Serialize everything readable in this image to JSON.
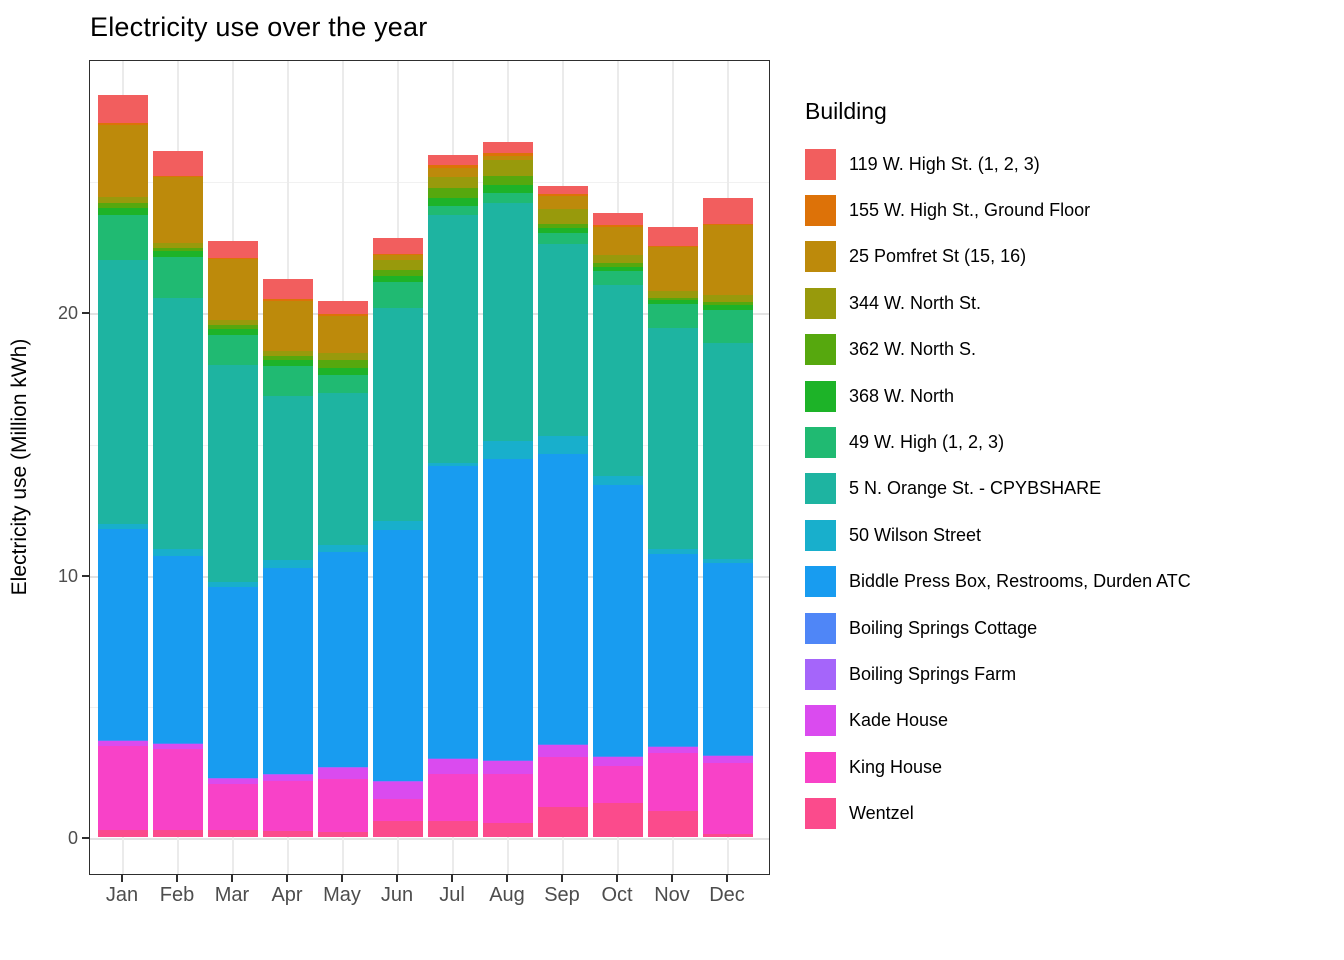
{
  "title": "Electricity use over the year",
  "y_axis": {
    "label": "Electricity use (Million kWh)",
    "tick_labels": [
      "0",
      "10",
      "20"
    ],
    "tick_values": [
      0,
      10,
      20
    ],
    "minor_values": [
      5,
      15,
      25
    ]
  },
  "x_axis": {
    "labels": [
      "Jan",
      "Feb",
      "Mar",
      "Apr",
      "May",
      "Jun",
      "Jul",
      "Aug",
      "Sep",
      "Oct",
      "Nov",
      "Dec"
    ]
  },
  "legend": {
    "title": "Building"
  },
  "chart_data": {
    "type": "bar",
    "stacked": true,
    "title": "Electricity use over the year",
    "xlabel": "",
    "ylabel": "Electricity use (Million kWh)",
    "ylim": [
      0,
      29.6
    ],
    "grid": true,
    "legend_position": "right",
    "categories": [
      "Jan",
      "Feb",
      "Mar",
      "Apr",
      "May",
      "Jun",
      "Jul",
      "Aug",
      "Sep",
      "Oct",
      "Nov",
      "Dec"
    ],
    "series": [
      {
        "name": "119 W. High St. (1, 2, 3)",
        "color": "#F25E5E",
        "values": [
          1.07,
          0.95,
          0.64,
          0.76,
          0.5,
          0.61,
          0.36,
          0.41,
          0.3,
          0.46,
          0.72,
          0.98
        ]
      },
      {
        "name": "155 W. High St., Ground Floor",
        "color": "#DD7208",
        "values": [
          0.08,
          0.06,
          0.05,
          0.05,
          0.05,
          0.05,
          0.14,
          0.1,
          0.08,
          0.05,
          0.05,
          0.05
        ]
      },
      {
        "name": "25 Pomfret St (15, 16)",
        "color": "#BD8A0B",
        "values": [
          2.74,
          2.51,
          2.32,
          1.93,
          1.41,
          0.19,
          0.34,
          0.15,
          0.48,
          1.06,
          1.68,
          2.64
        ]
      },
      {
        "name": "344 W. North St.",
        "color": "#989A0C",
        "values": [
          0.23,
          0.19,
          0.19,
          0.19,
          0.27,
          0.38,
          0.42,
          0.62,
          0.57,
          0.31,
          0.25,
          0.26
        ]
      },
      {
        "name": "362 W. North S.",
        "color": "#56A80E",
        "values": [
          0.19,
          0.11,
          0.15,
          0.15,
          0.3,
          0.23,
          0.38,
          0.34,
          0.18,
          0.16,
          0.09,
          0.13
        ]
      },
      {
        "name": "368 W. North",
        "color": "#1DB328",
        "values": [
          0.27,
          0.23,
          0.23,
          0.23,
          0.27,
          0.23,
          0.3,
          0.3,
          0.18,
          0.17,
          0.15,
          0.19
        ]
      },
      {
        "name": "49 W. High (1, 2, 3)",
        "color": "#20BA72",
        "values": [
          1.71,
          1.56,
          1.14,
          1.14,
          0.69,
          0.99,
          0.34,
          0.4,
          0.42,
          0.51,
          0.91,
          1.27
        ]
      },
      {
        "name": "5 N. Orange St. - CPYBSHARE",
        "color": "#1EB4A1",
        "values": [
          10.04,
          9.58,
          8.26,
          6.24,
          5.81,
          8.1,
          9.45,
          9.06,
          7.3,
          7.28,
          8.41,
          8.23
        ]
      },
      {
        "name": "50 Wilson Street",
        "color": "#18AFCC",
        "values": [
          0.19,
          0.25,
          0.19,
          0.3,
          0.25,
          0.35,
          0.1,
          0.69,
          0.69,
          0.35,
          0.2,
          0.15
        ]
      },
      {
        "name": "Biddle Press Box, Restrooms, Durden ATC",
        "color": "#189CF0",
        "values": [
          8.05,
          7.13,
          7.29,
          7.85,
          8.19,
          9.55,
          11.14,
          11.48,
          11.07,
          10.34,
          7.32,
          7.31
        ]
      },
      {
        "name": "Boiling Springs Cottage",
        "color": "#4F86F7",
        "values": [
          0.02,
          0.02,
          0.02,
          0.02,
          0.02,
          0.02,
          0.02,
          0.02,
          0.02,
          0.02,
          0.02,
          0.02
        ]
      },
      {
        "name": "Boiling Springs Farm",
        "color": "#A565FA",
        "values": [
          0.02,
          0.02,
          0.02,
          0.02,
          0.02,
          0.02,
          0.02,
          0.02,
          0.02,
          0.02,
          0.02,
          0.02
        ]
      },
      {
        "name": "Kade House",
        "color": "#DA4BEF",
        "values": [
          0.2,
          0.2,
          0.2,
          0.24,
          0.42,
          0.65,
          0.57,
          0.48,
          0.46,
          0.34,
          0.23,
          0.26
        ]
      },
      {
        "name": "King House",
        "color": "#F842C8",
        "values": [
          3.18,
          3.07,
          1.74,
          1.89,
          2.03,
          0.85,
          1.79,
          1.88,
          1.9,
          1.38,
          2.19,
          2.7
        ]
      },
      {
        "name": "Wentzel",
        "color": "#FB4B8C",
        "values": [
          0.27,
          0.27,
          0.27,
          0.24,
          0.18,
          0.61,
          0.61,
          0.52,
          1.13,
          1.31,
          1.0,
          0.12
        ]
      }
    ]
  }
}
